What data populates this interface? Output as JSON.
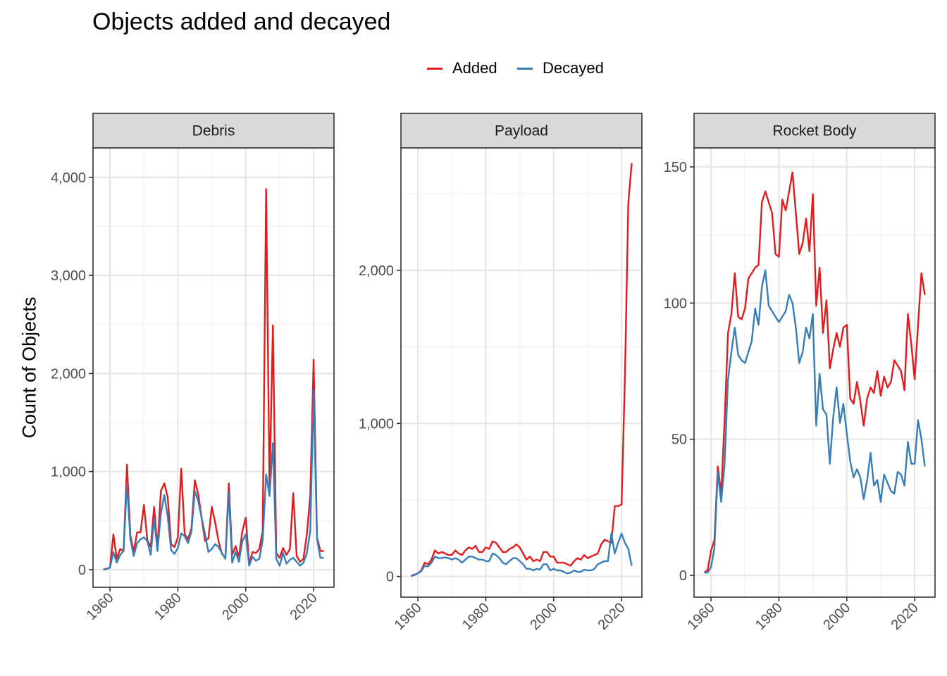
{
  "title": "Objects added and decayed",
  "ylabel": "Count of Objects",
  "colors": {
    "added": "#e41a1c",
    "decayed": "#377eb8"
  },
  "legend": {
    "added": "Added",
    "decayed": "Decayed"
  },
  "chart_data": [
    {
      "type": "line",
      "panel": "Debris",
      "x": [
        1958,
        1959,
        1960,
        1961,
        1962,
        1963,
        1964,
        1965,
        1966,
        1967,
        1968,
        1969,
        1970,
        1971,
        1972,
        1973,
        1974,
        1975,
        1976,
        1977,
        1978,
        1979,
        1980,
        1981,
        1982,
        1983,
        1984,
        1985,
        1986,
        1987,
        1988,
        1989,
        1990,
        1991,
        1992,
        1993,
        1994,
        1995,
        1996,
        1997,
        1998,
        1999,
        2000,
        2001,
        2002,
        2003,
        2004,
        2005,
        2006,
        2007,
        2008,
        2009,
        2010,
        2011,
        2012,
        2013,
        2014,
        2015,
        2016,
        2017,
        2018,
        2019,
        2020,
        2021,
        2022,
        2023
      ],
      "series": [
        {
          "name": "Added",
          "values": [
            0,
            10,
            20,
            360,
            110,
            210,
            190,
            1070,
            350,
            180,
            380,
            380,
            660,
            300,
            230,
            640,
            220,
            800,
            880,
            740,
            260,
            230,
            330,
            1030,
            360,
            310,
            420,
            910,
            770,
            530,
            290,
            320,
            640,
            480,
            290,
            160,
            120,
            880,
            150,
            240,
            130,
            390,
            530,
            60,
            180,
            170,
            210,
            390,
            3880,
            830,
            2490,
            170,
            120,
            220,
            150,
            210,
            780,
            140,
            80,
            110,
            360,
            750,
            2140,
            330,
            190,
            190
          ]
        },
        {
          "name": "Decayed",
          "values": [
            0,
            5,
            20,
            180,
            70,
            150,
            190,
            890,
            310,
            140,
            270,
            310,
            330,
            290,
            150,
            520,
            190,
            570,
            760,
            540,
            200,
            160,
            220,
            370,
            340,
            270,
            390,
            800,
            700,
            530,
            360,
            180,
            210,
            260,
            230,
            170,
            110,
            780,
            70,
            180,
            80,
            290,
            360,
            40,
            130,
            90,
            110,
            300,
            970,
            750,
            1290,
            110,
            40,
            170,
            60,
            100,
            120,
            80,
            40,
            70,
            170,
            390,
            1830,
            310,
            120,
            120
          ]
        }
      ],
      "ylim": [
        -180,
        4300
      ],
      "yticks": [
        0,
        1000,
        2000,
        3000,
        4000
      ],
      "ytick_labels": [
        "0",
        "1,000",
        "2,000",
        "3,000",
        "4,000"
      ],
      "xlim": [
        1955,
        2026
      ],
      "xticks": [
        1960,
        1980,
        2000,
        2020
      ],
      "xtick_labels": [
        "1960",
        "1980",
        "2000",
        "2020"
      ]
    },
    {
      "type": "line",
      "panel": "Payload",
      "x": [
        1958,
        1959,
        1960,
        1961,
        1962,
        1963,
        1964,
        1965,
        1966,
        1967,
        1968,
        1969,
        1970,
        1971,
        1972,
        1973,
        1974,
        1975,
        1976,
        1977,
        1978,
        1979,
        1980,
        1981,
        1982,
        1983,
        1984,
        1985,
        1986,
        1987,
        1988,
        1989,
        1990,
        1991,
        1992,
        1993,
        1994,
        1995,
        1996,
        1997,
        1998,
        1999,
        2000,
        2001,
        2002,
        2003,
        2004,
        2005,
        2006,
        2007,
        2008,
        2009,
        2010,
        2011,
        2012,
        2013,
        2014,
        2015,
        2016,
        2017,
        2018,
        2019,
        2020,
        2021,
        2022,
        2023
      ],
      "series": [
        {
          "name": "Added",
          "values": [
            5,
            12,
            20,
            40,
            90,
            80,
            110,
            170,
            150,
            160,
            150,
            140,
            140,
            170,
            150,
            140,
            170,
            190,
            180,
            200,
            160,
            160,
            190,
            180,
            230,
            220,
            190,
            160,
            160,
            180,
            190,
            210,
            190,
            150,
            110,
            130,
            100,
            110,
            100,
            160,
            160,
            130,
            130,
            90,
            90,
            90,
            80,
            70,
            100,
            120,
            110,
            140,
            120,
            130,
            140,
            150,
            210,
            240,
            230,
            220,
            460,
            460,
            470,
            1300,
            2440,
            2700
          ]
        },
        {
          "name": "Decayed",
          "values": [
            2,
            10,
            20,
            35,
            70,
            65,
            90,
            130,
            120,
            120,
            125,
            120,
            110,
            120,
            110,
            90,
            110,
            130,
            130,
            120,
            110,
            110,
            100,
            100,
            150,
            140,
            120,
            90,
            80,
            100,
            120,
            120,
            100,
            80,
            50,
            50,
            40,
            50,
            45,
            80,
            80,
            40,
            50,
            40,
            40,
            30,
            20,
            25,
            40,
            30,
            30,
            45,
            40,
            40,
            50,
            80,
            90,
            100,
            100,
            280,
            150,
            220,
            280,
            220,
            180,
            70
          ]
        }
      ],
      "ylim": [
        -135,
        2800
      ],
      "yticks": [
        0,
        1000,
        2000
      ],
      "ytick_labels": [
        "0",
        "1,000",
        "2,000"
      ],
      "xlim": [
        1955,
        2026
      ],
      "xticks": [
        1960,
        1980,
        2000,
        2020
      ],
      "xtick_labels": [
        "1960",
        "1980",
        "2000",
        "2020"
      ]
    },
    {
      "type": "line",
      "panel": "Rocket Body",
      "x": [
        1958,
        1959,
        1960,
        1961,
        1962,
        1963,
        1964,
        1965,
        1966,
        1967,
        1968,
        1969,
        1970,
        1971,
        1972,
        1973,
        1974,
        1975,
        1976,
        1977,
        1978,
        1979,
        1980,
        1981,
        1982,
        1983,
        1984,
        1985,
        1986,
        1987,
        1988,
        1989,
        1990,
        1991,
        1992,
        1993,
        1994,
        1995,
        1996,
        1997,
        1998,
        1999,
        2000,
        2001,
        2002,
        2003,
        2004,
        2005,
        2006,
        2007,
        2008,
        2009,
        2010,
        2011,
        2012,
        2013,
        2014,
        2015,
        2016,
        2017,
        2018,
        2019,
        2020,
        2021,
        2022,
        2023
      ],
      "series": [
        {
          "name": "Added",
          "values": [
            1,
            2,
            9,
            13,
            40,
            30,
            57,
            89,
            96,
            111,
            95,
            94,
            98,
            109,
            111,
            113,
            114,
            137,
            141,
            137,
            133,
            118,
            117,
            138,
            134,
            141,
            148,
            133,
            118,
            122,
            131,
            119,
            140,
            99,
            113,
            89,
            101,
            76,
            83,
            89,
            84,
            91,
            92,
            65,
            63,
            71,
            64,
            55,
            65,
            69,
            67,
            75,
            66,
            73,
            69,
            71,
            79,
            77,
            75,
            68,
            96,
            85,
            72,
            92,
            111,
            103
          ]
        },
        {
          "name": "Decayed",
          "values": [
            1,
            1,
            3,
            10,
            38,
            27,
            41,
            72,
            82,
            91,
            81,
            79,
            78,
            82,
            86,
            98,
            92,
            106,
            112,
            99,
            97,
            95,
            93,
            95,
            97,
            103,
            100,
            91,
            78,
            82,
            91,
            87,
            96,
            55,
            74,
            61,
            59,
            41,
            58,
            69,
            56,
            63,
            52,
            42,
            36,
            39,
            36,
            28,
            35,
            45,
            33,
            35,
            27,
            37,
            34,
            31,
            30,
            38,
            37,
            33,
            49,
            41,
            41,
            57,
            50,
            40
          ]
        }
      ],
      "ylim": [
        -8,
        157
      ],
      "yticks": [
        0,
        50,
        100,
        150
      ],
      "ytick_labels": [
        "0",
        "50",
        "100",
        "150"
      ],
      "xlim": [
        1955,
        2026
      ],
      "xticks": [
        1960,
        1980,
        2000,
        2020
      ],
      "xtick_labels": [
        "1960",
        "1980",
        "2000",
        "2020"
      ]
    }
  ]
}
